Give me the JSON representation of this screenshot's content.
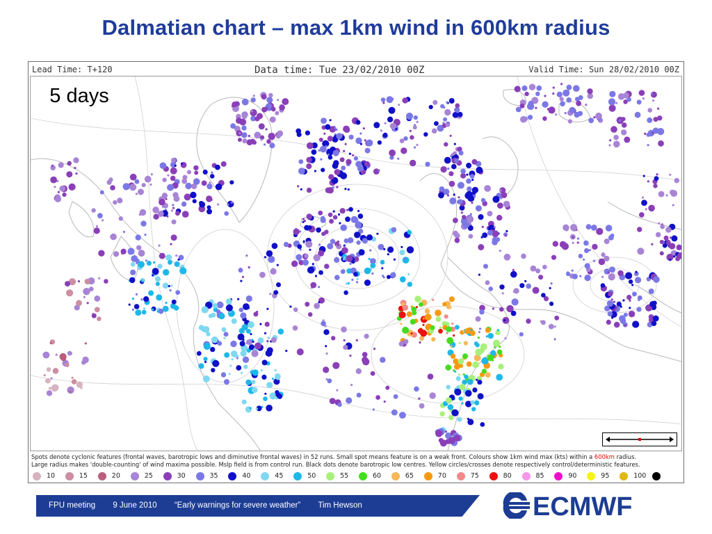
{
  "slide": {
    "title": "Dalmatian chart – max 1km wind in 600km radius"
  },
  "map_header": {
    "lead_time": "Lead Time: T+120",
    "data_time": "Data time:  Tue 23/02/2010 00Z",
    "valid_time": "Valid Time: Sun 28/02/2010 00Z"
  },
  "badge": {
    "label": "5 days"
  },
  "caption": {
    "line1a": "Spots denote cyclonic features (frontal waves, barotropic lows and diminutive frontal waves) in 52 runs. Small spot means feature is on a weak front. Colours show 1km wind max (kts) within a ",
    "line1b": "600km",
    "line1c": " radius.",
    "line2": "Large radius makes 'double-counting' of wind maxima possible. Mslp field is from control run. Black dots denote barotropic low centres. Yellow circles/crosses denote respectively control/deterministic features."
  },
  "legend": [
    {
      "label": "10",
      "color": "#d6b3bf"
    },
    {
      "label": "15",
      "color": "#cc8ea0"
    },
    {
      "label": "20",
      "color": "#b85f7c"
    },
    {
      "label": "25",
      "color": "#a884d6"
    },
    {
      "label": "30",
      "color": "#8a3fb8"
    },
    {
      "label": "35",
      "color": "#7b78e6"
    },
    {
      "label": "40",
      "color": "#1010c8"
    },
    {
      "label": "45",
      "color": "#7fd8f0"
    },
    {
      "label": "50",
      "color": "#1eb8e8"
    },
    {
      "label": "55",
      "color": "#a8f07a"
    },
    {
      "label": "60",
      "color": "#44dd1e"
    },
    {
      "label": "65",
      "color": "#f5b85a"
    },
    {
      "label": "70",
      "color": "#f59a10"
    },
    {
      "label": "75",
      "color": "#f08a8a"
    },
    {
      "label": "80",
      "color": "#ee1010"
    },
    {
      "label": "85",
      "color": "#f598e8"
    },
    {
      "label": "90",
      "color": "#ee10c8"
    },
    {
      "label": "95",
      "color": "#f5f510"
    },
    {
      "label": "100",
      "color": "#e0b810"
    },
    {
      "label": "",
      "color": "#000000"
    }
  ],
  "footer": {
    "meeting": "FPU meeting",
    "date": "9 June 2010",
    "talk": "“Early warnings for severe weather”",
    "author": "Tim Hewson"
  },
  "logo": {
    "text": "ECMWF"
  }
}
